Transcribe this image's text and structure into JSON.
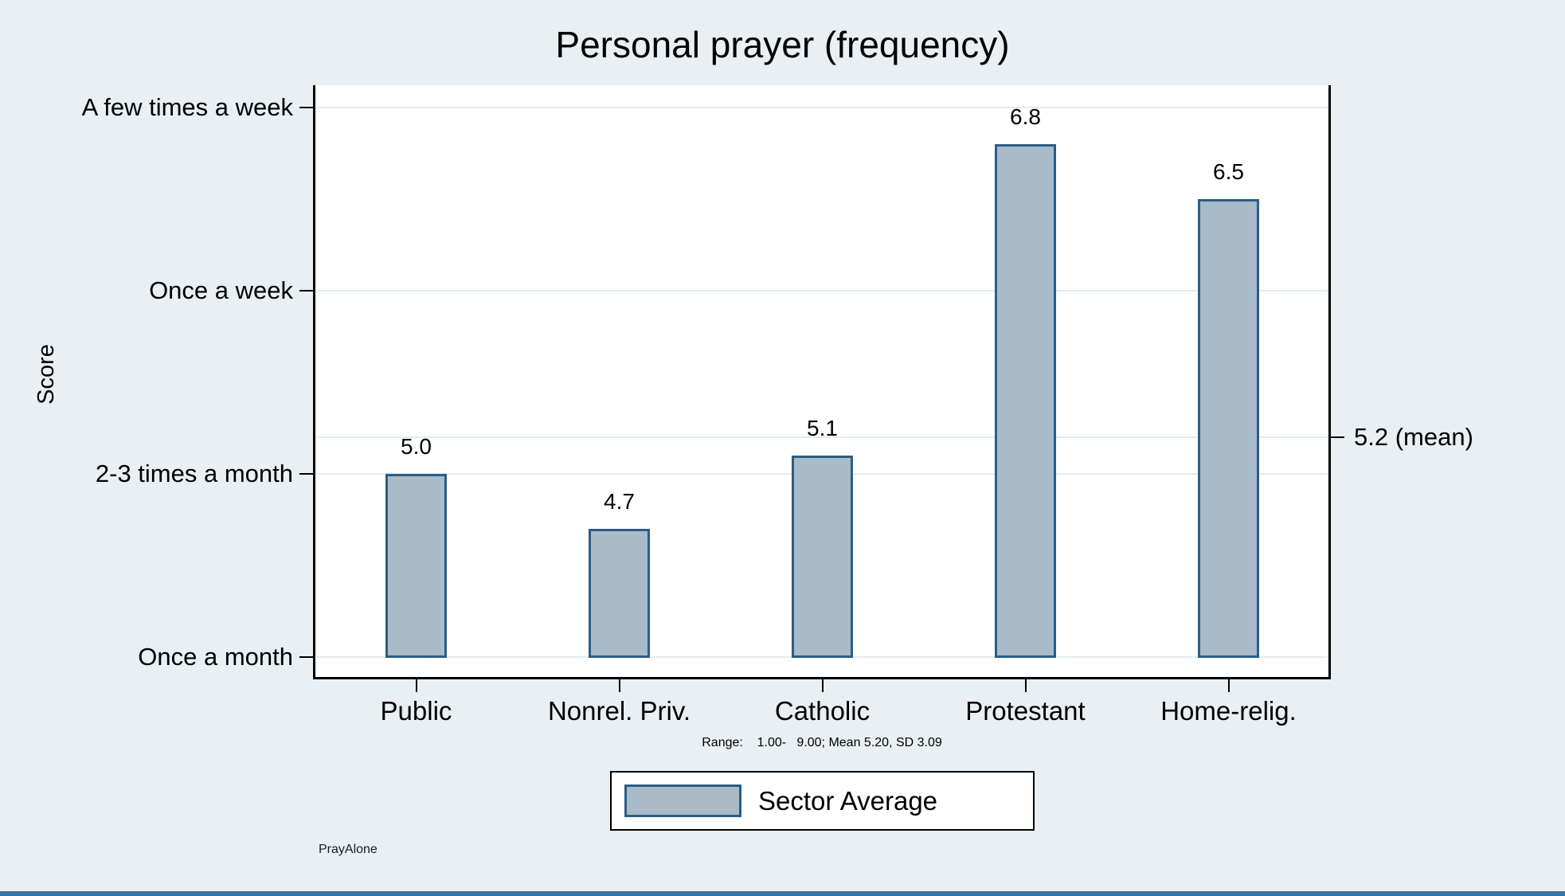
{
  "page": {
    "background": "#e9eff2",
    "bottom_strip_color": "#3a73a9"
  },
  "chart_data": {
    "type": "bar",
    "title": "Personal prayer (frequency)",
    "ylabel": "Score",
    "categories": [
      "Public",
      "Nonrel. Priv.",
      "Catholic",
      "Protestant",
      "Home-relig."
    ],
    "values": [
      5.0,
      4.7,
      5.1,
      6.8,
      6.5
    ],
    "value_labels": [
      "5.0",
      "4.7",
      "5.1",
      "6.8",
      "6.5"
    ],
    "y_ticks": [
      {
        "value": 7,
        "label": "A few times a week"
      },
      {
        "value": 6,
        "label": "Once a week"
      },
      {
        "value": 5,
        "label": "2-3 times a month"
      },
      {
        "value": 4,
        "label": "Once a month"
      }
    ],
    "y_axis_range": [
      3.88,
      7.12
    ],
    "bar_base_value": 4,
    "right_axis_tick": {
      "value": 5.2,
      "label": "5.2 (mean)"
    },
    "legend": {
      "position": "bottom-center",
      "entries": [
        {
          "label": "Sector Average"
        }
      ]
    },
    "note": "Range:    1.00-   9.00; Mean 5.20, SD 3.09",
    "caption": "PrayAlone",
    "grid": true,
    "legend_border": true,
    "colors": {
      "bar_fill": "#a9bac9",
      "bar_border": "#2c5d85",
      "background": "#e9eff2",
      "plot_background": "#ffffff",
      "gridline": "#e3ebf0",
      "axis": "#000000",
      "text": "#000000"
    }
  }
}
